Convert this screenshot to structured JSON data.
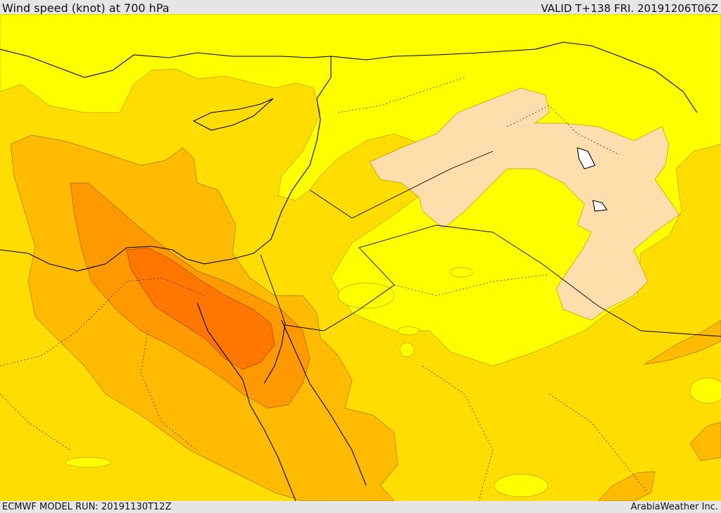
{
  "header": {
    "title": "Wind speed (knot) at 700 hPa",
    "valid": "VALID T+138 FRI. 20191206T06Z"
  },
  "footer": {
    "model_run": "ECMWF MODEL RUN: 20191130T12Z",
    "credit": "ArabiaWeather Inc."
  },
  "palette": {
    "light_yellow": "#ffff00",
    "yellow": "#ffdd00",
    "light_orange": "#ffbb00",
    "orange": "#ff9900",
    "dark_orange": "#ff7700",
    "calm_beige": "#ffdead"
  }
}
